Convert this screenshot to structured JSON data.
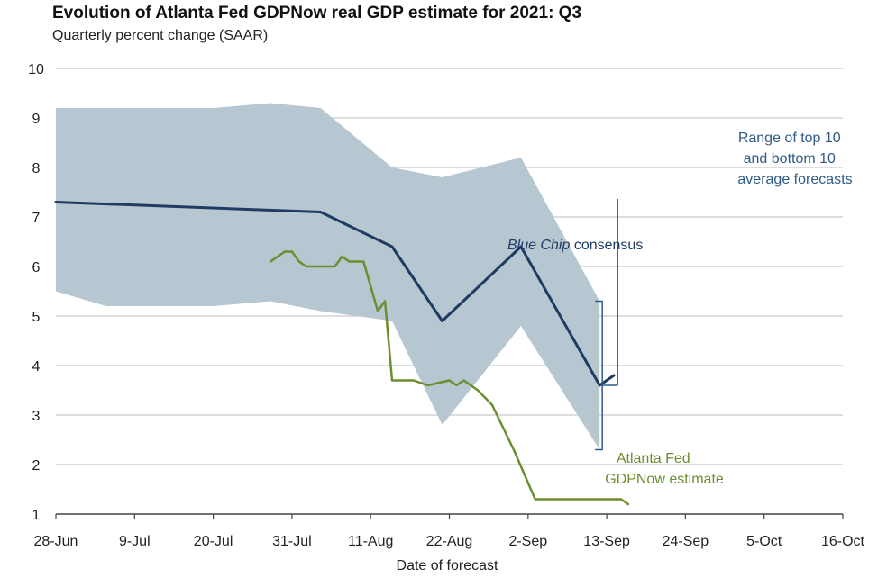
{
  "chart_data": {
    "type": "line",
    "title": "Evolution of Atlanta Fed GDPNow real GDP estimate for 2021: Q3",
    "subtitle": "Quarterly percent change (SAAR)",
    "xlabel": "Date of forecast",
    "ylabel": "",
    "ylim": [
      1,
      10
    ],
    "yticks": [
      "1",
      "2",
      "3",
      "4",
      "5",
      "6",
      "7",
      "8",
      "9",
      "10"
    ],
    "xticks": [
      "28-Jun",
      "9-Jul",
      "20-Jul",
      "31-Jul",
      "11-Aug",
      "22-Aug",
      "2-Sep",
      "13-Sep",
      "24-Sep",
      "5-Oct",
      "16-Oct"
    ],
    "x_unit": "days since 28-Jun",
    "grid": true,
    "series": [
      {
        "name": "Blue Chip consensus",
        "color": "#1f3b63",
        "x": [
          0,
          37,
          47,
          54,
          65,
          76,
          78
        ],
        "y": [
          7.3,
          7.1,
          6.4,
          4.9,
          6.4,
          3.6,
          3.8
        ]
      },
      {
        "name": "Atlanta Fed GDPNow estimate",
        "color": "#6b8e2f",
        "x": [
          30,
          31,
          32,
          33,
          34,
          35,
          36,
          39,
          40,
          41,
          42,
          43,
          45,
          46,
          47,
          48,
          50,
          52,
          55,
          56,
          57,
          59,
          61,
          64,
          67,
          68,
          71,
          73,
          76,
          77,
          78,
          79,
          80
        ],
        "y": [
          6.1,
          6.2,
          6.3,
          6.3,
          6.1,
          6.0,
          6.0,
          6.0,
          6.2,
          6.1,
          6.1,
          6.1,
          5.1,
          5.3,
          3.7,
          3.7,
          3.7,
          3.6,
          3.7,
          3.6,
          3.7,
          3.5,
          3.2,
          2.3,
          1.3,
          1.3,
          1.3,
          1.3,
          1.3,
          1.3,
          1.3,
          1.3,
          1.2
        ]
      }
    ],
    "band": {
      "name": "Range of top 10 and bottom 10 average forecasts",
      "color": "#b7c7d1",
      "x": [
        0,
        7,
        15,
        22,
        30,
        37,
        47,
        54,
        65,
        76
      ],
      "upper": [
        9.2,
        9.2,
        9.2,
        9.2,
        9.3,
        9.2,
        8.0,
        7.8,
        8.2,
        5.3
      ],
      "lower": [
        5.5,
        5.2,
        5.2,
        5.2,
        5.3,
        5.1,
        4.9,
        2.8,
        4.8,
        2.3
      ]
    },
    "annotations": {
      "band_label": [
        "Range of top 10",
        "and bottom 10",
        "average forecasts"
      ],
      "blue_chip_italic": "Blue Chip",
      "blue_chip_rest": " consensus",
      "gdpnow_label": [
        "Atlanta Fed",
        "GDPNow estimate"
      ]
    }
  }
}
